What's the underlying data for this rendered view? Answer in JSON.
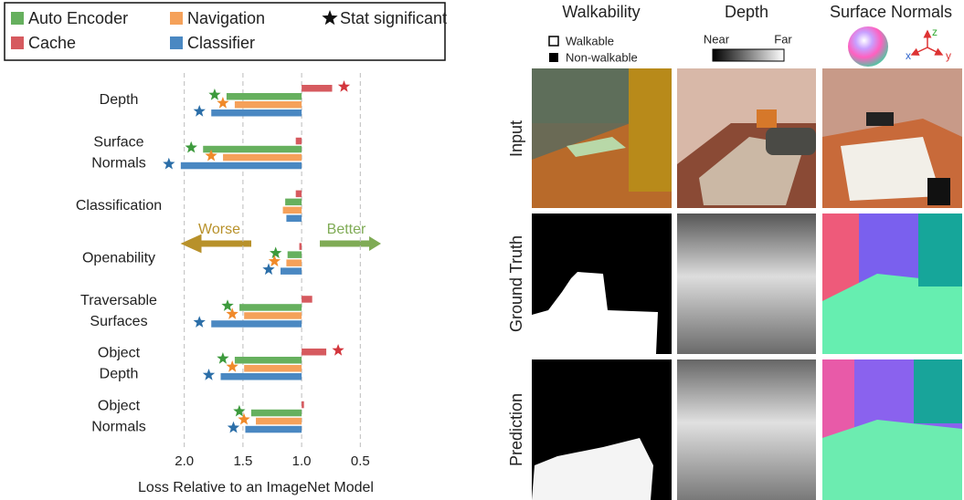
{
  "chart_data": {
    "type": "hbar",
    "xlabel": "Loss Relative to an ImageNet Model",
    "categories": [
      [
        "Depth"
      ],
      [
        "Surface",
        "Normals"
      ],
      [
        "Classification"
      ],
      [
        "Openability"
      ],
      [
        "Traversable",
        "Surfaces"
      ],
      [
        "Object",
        "Depth"
      ],
      [
        "Object",
        "Normals"
      ]
    ],
    "baseline": 1,
    "series": [
      {
        "name": "Cache",
        "color": "#d65a5f",
        "star_color": "#d3363d",
        "values": [
          0.74,
          1.05,
          1.05,
          1.02,
          0.91,
          0.79,
          0.98
        ],
        "significant": [
          true,
          false,
          false,
          false,
          false,
          true,
          false
        ]
      },
      {
        "name": "Auto Encoder",
        "color": "#66b05e",
        "star_color": "#3d9a3d",
        "values": [
          1.64,
          1.84,
          1.14,
          1.12,
          1.53,
          1.57,
          1.43
        ],
        "significant": [
          true,
          true,
          false,
          true,
          true,
          true,
          true
        ]
      },
      {
        "name": "Navigation",
        "color": "#f5a15a",
        "star_color": "#f08a2a",
        "values": [
          1.57,
          1.67,
          1.16,
          1.13,
          1.49,
          1.49,
          1.39
        ],
        "significant": [
          true,
          true,
          false,
          true,
          true,
          true,
          true
        ]
      },
      {
        "name": "Classifier",
        "color": "#4a88c2",
        "star_color": "#2b6ea8",
        "values": [
          1.77,
          2.03,
          1.13,
          1.18,
          1.77,
          1.69,
          1.48
        ],
        "significant": [
          true,
          true,
          false,
          true,
          true,
          true,
          true
        ]
      }
    ],
    "significance_label": "Stat significant",
    "xlim": [
      2.13,
      0.3
    ],
    "xticks": [
      {
        "value": 2,
        "label": "2.0"
      },
      1.5,
      {
        "value": 1,
        "label": "1.0"
      },
      0.5
    ],
    "grid": true,
    "annotations": [
      "Worse",
      "Better"
    ]
  },
  "figure": {
    "columns": [
      "Walkability",
      "Depth",
      "Surface Normals"
    ],
    "rows": [
      "Input",
      "Ground Truth",
      "Prediction"
    ],
    "walk_legend": [
      "Walkable",
      "Non-walkable"
    ],
    "depth_legend": [
      "Near",
      "Far"
    ],
    "axes": [
      "x",
      "y",
      "z"
    ]
  }
}
